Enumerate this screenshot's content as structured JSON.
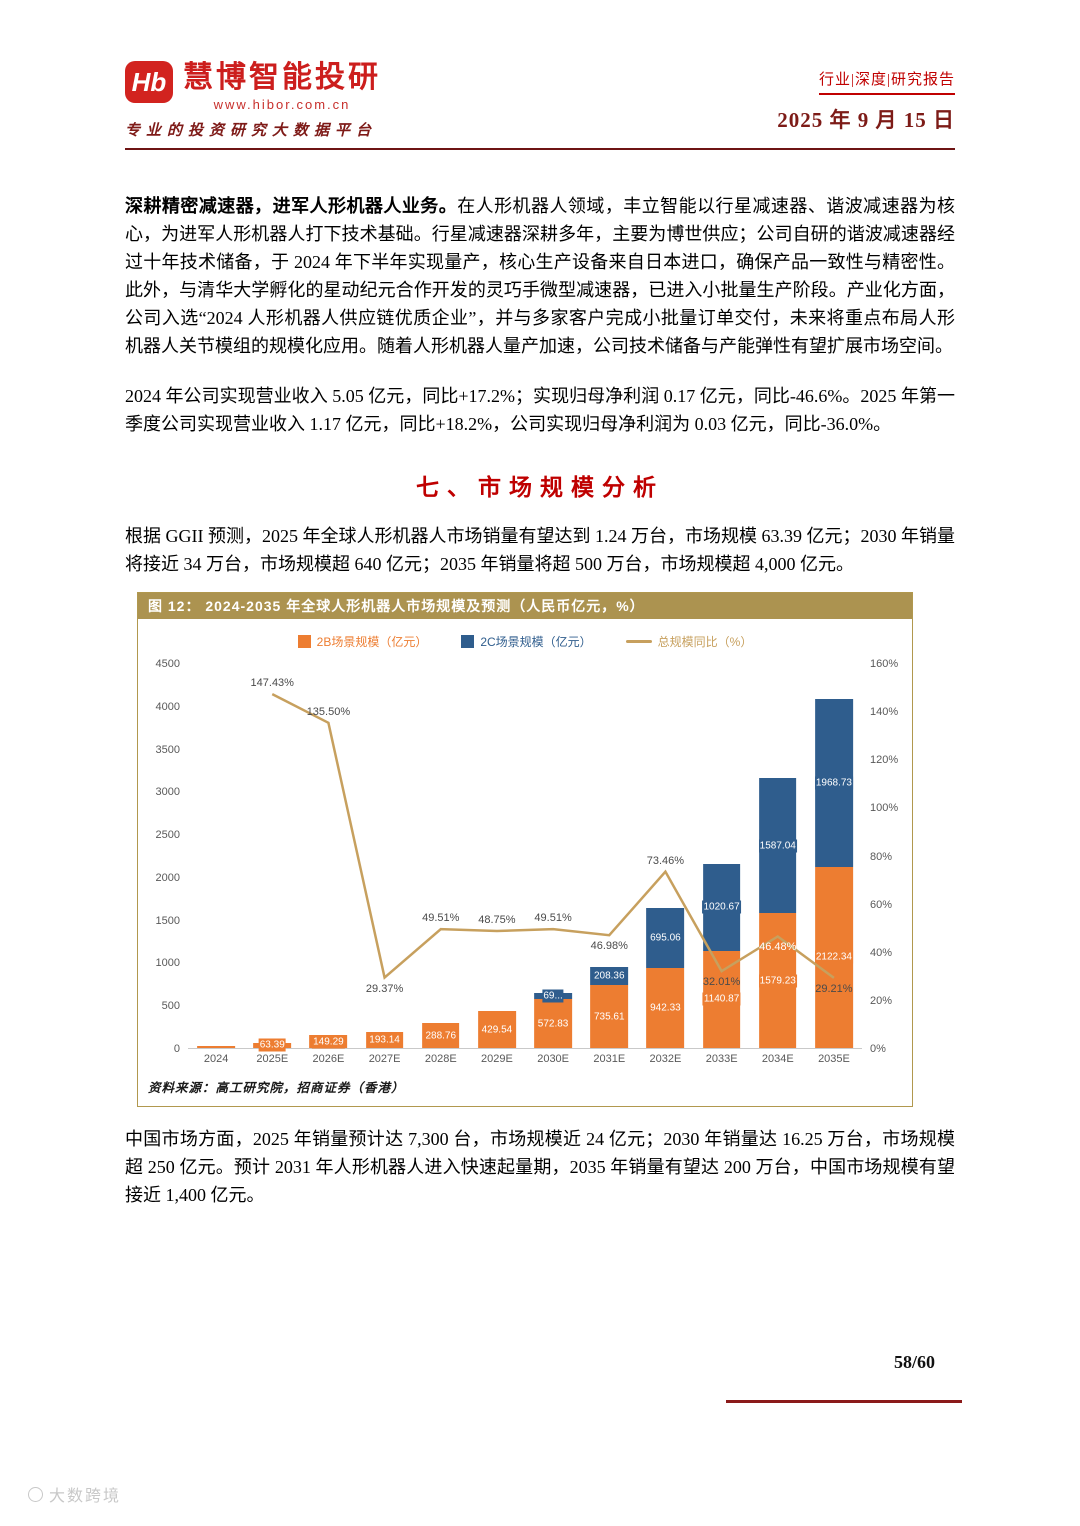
{
  "page": {
    "date": "2025 年 9 月 15 日",
    "page_number": "58/60",
    "watermark": "大数跨境"
  },
  "header": {
    "logo_mark": "Hb",
    "brand": "慧博智能投研",
    "website": "www.hibor.com.cn",
    "tagline": "专业的投资研究大数据平台",
    "doc_type": "行业|深度|研究报告",
    "accent_color": "#c00000"
  },
  "content": {
    "para1_bold": "深耕精密减速器，进军人形机器人业务。",
    "para1_rest": "在人形机器人领域，丰立智能以行星减速器、谐波减速器为核心，为进军人形机器人打下技术基础。行星减速器深耕多年，主要为博世供应；公司自研的谐波减速器经过十年技术储备，于 2024 年下半年实现量产，核心生产设备来自日本进口，确保产品一致性与精密性。此外，与清华大学孵化的星动纪元合作开发的灵巧手微型减速器，已进入小批量生产阶段。产业化方面，公司入选“2024 人形机器人供应链优质企业”，并与多家客户完成小批量订单交付，未来将重点布局人形机器人关节模组的规模化应用。随着人形机器人量产加速，公司技术储备与产能弹性有望扩展市场空间。",
    "para2": "2024 年公司实现营业收入 5.05 亿元，同比+17.2%；实现归母净利润 0.17 亿元，同比-46.6%。2025 年第一季度公司实现营业收入 1.17 亿元，同比+18.2%，公司实现归母净利润为 0.03 亿元，同比-36.0%。",
    "section_title": "七、市场规模分析",
    "para3": "根据 GGII 预测，2025 年全球人形机器人市场销量有望达到 1.24 万台，市场规模 63.39 亿元；2030 年销量将接近 34 万台，市场规模超 640 亿元；2035 年销量将超 500 万台，市场规模超 4,000 亿元。",
    "para4": "中国市场方面，2025 年销量预计达 7,300 台，市场规模近 24 亿元；2030 年销量达 16.25 万台，市场规模超 250 亿元。预计 2031 年人形机器人进入快速起量期，2035 年销量有望达 200 万台，中国市场规模有望接近 1,400 亿元。"
  },
  "chart_data": {
    "type": "bar",
    "subtype": "stacked-bars-with-line",
    "title": "图 12： 2024-2035 年全球人形机器人市场规模及预测（人民币亿元，%）",
    "source": "资料来源：高工研究院，招商证券（香港）",
    "categories": [
      "2024",
      "2025E",
      "2026E",
      "2027E",
      "2028E",
      "2029E",
      "2030E",
      "2031E",
      "2032E",
      "2033E",
      "2034E",
      "2035E"
    ],
    "series": [
      {
        "name": "2B场景规模（亿元）",
        "type": "bar",
        "color": "#ed7d31",
        "values": [
          25.6,
          63.39,
          149.29,
          193.14,
          288.76,
          429.54,
          572.83,
          735.61,
          942.33,
          1140.87,
          1579.23,
          2122.34
        ],
        "labels": [
          "",
          "63.39",
          "149.29",
          "193.14",
          "288.76",
          "429.54",
          "572.83",
          "735.61",
          "942.33",
          "1140.87",
          "1579.23",
          "2122.34"
        ]
      },
      {
        "name": "2C场景规模（亿元）",
        "type": "bar",
        "color": "#2f5d8d",
        "values": [
          0,
          0,
          0,
          0,
          0,
          0,
          69,
          208.36,
          695.06,
          1020.67,
          1587.04,
          1968.73
        ],
        "labels": [
          "",
          "",
          "",
          "",
          "",
          "",
          "69...",
          "208.36",
          "695.06",
          "1020.67",
          "1587.04",
          "1968.73"
        ]
      },
      {
        "name": "总规模同比（%）",
        "type": "line",
        "color": "#c7a05e",
        "values": [
          null,
          147.43,
          135.5,
          29.37,
          49.51,
          48.75,
          49.51,
          46.98,
          73.46,
          32.01,
          46.48,
          29.21
        ],
        "labels": [
          "",
          "147.43%",
          "135.50%",
          "29.37%",
          "49.51%",
          "48.75%",
          "49.51%",
          "46.98%",
          "73.46%",
          "32.01%",
          "46.48%",
          "29.21%"
        ],
        "label_pos": [
          "",
          "above",
          "above",
          "below",
          "above",
          "above",
          "above",
          "below",
          "above",
          "below",
          "below",
          "below"
        ],
        "label_colors": [
          "",
          "",
          "",
          "",
          "",
          "",
          "",
          "",
          "",
          "",
          "#ffffff",
          ""
        ]
      }
    ],
    "left_axis": {
      "min": 0,
      "max": 4500,
      "ticks": [
        0,
        500,
        1000,
        1500,
        2000,
        2500,
        3000,
        3500,
        4000,
        4500
      ]
    },
    "right_axis": {
      "min": 0,
      "max": 160,
      "ticks": [
        "0%",
        "20%",
        "40%",
        "60%",
        "80%",
        "100%",
        "120%",
        "140%",
        "160%"
      ]
    },
    "grid": false,
    "legend_position": "top"
  }
}
